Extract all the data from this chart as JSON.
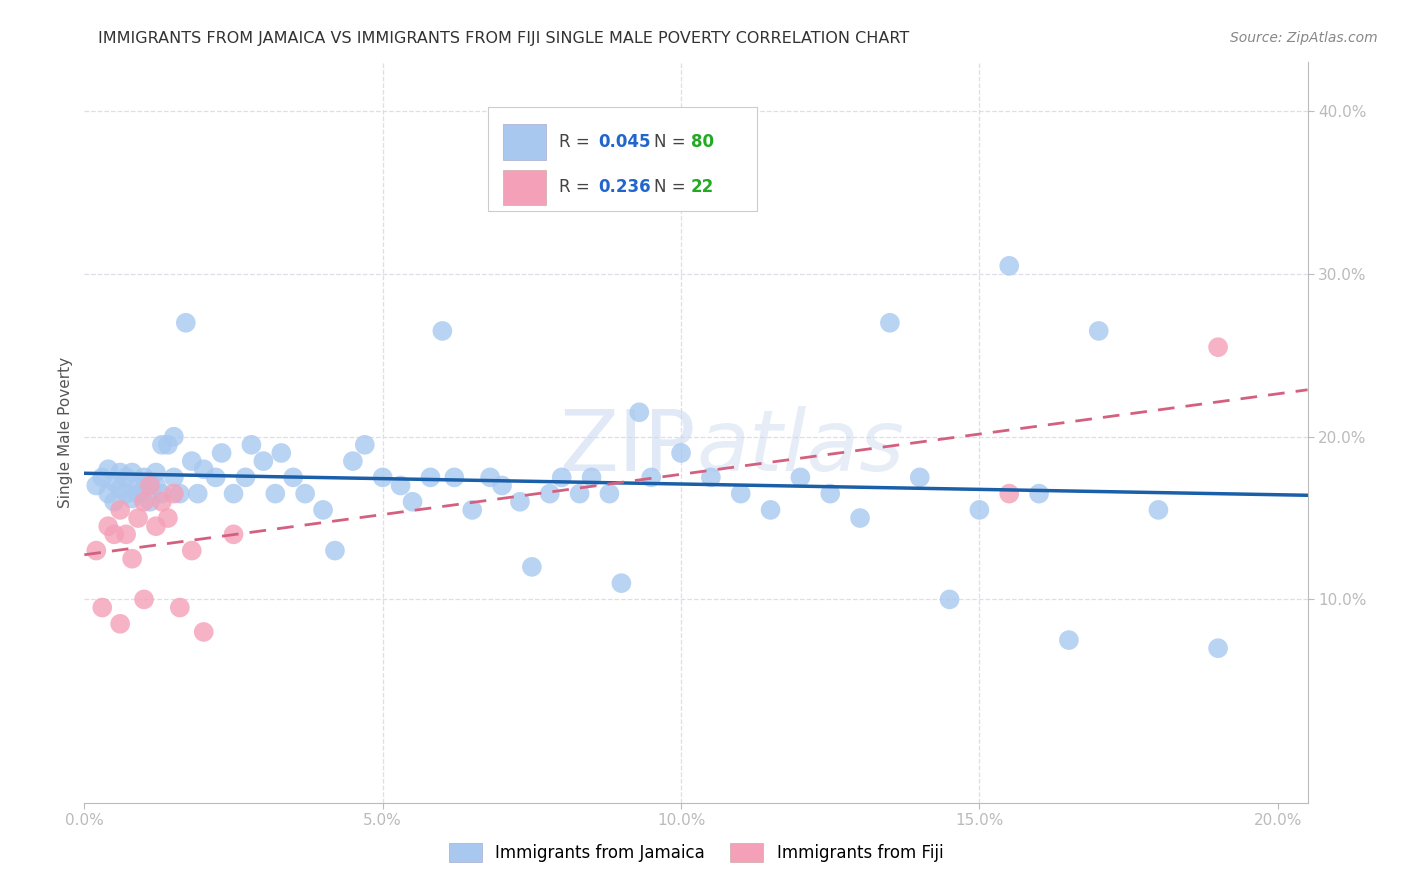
{
  "title": "IMMIGRANTS FROM JAMAICA VS IMMIGRANTS FROM FIJI SINGLE MALE POVERTY CORRELATION CHART",
  "source": "Source: ZipAtlas.com",
  "ylabel": "Single Male Poverty",
  "xlim": [
    0.0,
    0.205
  ],
  "ylim": [
    -0.025,
    0.43
  ],
  "jamaica_color": "#A8C8F0",
  "fiji_color": "#F4A0B8",
  "jamaica_line_color": "#1A5FA8",
  "fiji_line_color": "#D46080",
  "grid_color": "#DDDDEE",
  "axis_color": "#BBBBBB",
  "tick_color": "#4488CC",
  "title_color": "#333333",
  "source_color": "#888888",
  "ylabel_color": "#555555",
  "watermark_color": "#C8D8EE",
  "jamaica_R": 0.045,
  "jamaica_N": 80,
  "fiji_R": 0.236,
  "fiji_N": 22,
  "legend_text_color": "#444444",
  "legend_val_color": "#2266CC",
  "legend_n_color": "#22AA22",
  "jamaica_x": [
    0.002,
    0.003,
    0.004,
    0.004,
    0.005,
    0.005,
    0.006,
    0.006,
    0.007,
    0.007,
    0.008,
    0.008,
    0.009,
    0.009,
    0.01,
    0.01,
    0.011,
    0.011,
    0.012,
    0.012,
    0.013,
    0.013,
    0.014,
    0.015,
    0.015,
    0.016,
    0.017,
    0.018,
    0.019,
    0.02,
    0.022,
    0.023,
    0.025,
    0.027,
    0.028,
    0.03,
    0.032,
    0.033,
    0.035,
    0.037,
    0.04,
    0.042,
    0.045,
    0.047,
    0.05,
    0.053,
    0.055,
    0.058,
    0.06,
    0.062,
    0.065,
    0.068,
    0.07,
    0.073,
    0.075,
    0.078,
    0.08,
    0.083,
    0.085,
    0.088,
    0.09,
    0.093,
    0.095,
    0.1,
    0.105,
    0.11,
    0.115,
    0.12,
    0.125,
    0.13,
    0.135,
    0.14,
    0.145,
    0.15,
    0.155,
    0.16,
    0.165,
    0.17,
    0.18,
    0.19
  ],
  "jamaica_y": [
    0.17,
    0.175,
    0.165,
    0.18,
    0.172,
    0.16,
    0.178,
    0.168,
    0.165,
    0.175,
    0.162,
    0.178,
    0.17,
    0.165,
    0.175,
    0.168,
    0.172,
    0.16,
    0.178,
    0.17,
    0.195,
    0.165,
    0.195,
    0.175,
    0.2,
    0.165,
    0.27,
    0.185,
    0.165,
    0.18,
    0.175,
    0.19,
    0.165,
    0.175,
    0.195,
    0.185,
    0.165,
    0.19,
    0.175,
    0.165,
    0.155,
    0.13,
    0.185,
    0.195,
    0.175,
    0.17,
    0.16,
    0.175,
    0.265,
    0.175,
    0.155,
    0.175,
    0.17,
    0.16,
    0.12,
    0.165,
    0.175,
    0.165,
    0.175,
    0.165,
    0.11,
    0.215,
    0.175,
    0.19,
    0.175,
    0.165,
    0.155,
    0.175,
    0.165,
    0.15,
    0.27,
    0.175,
    0.1,
    0.155,
    0.305,
    0.165,
    0.075,
    0.265,
    0.155,
    0.07
  ],
  "fiji_x": [
    0.002,
    0.003,
    0.004,
    0.005,
    0.006,
    0.006,
    0.007,
    0.008,
    0.009,
    0.01,
    0.01,
    0.011,
    0.012,
    0.013,
    0.014,
    0.015,
    0.016,
    0.018,
    0.02,
    0.025,
    0.155,
    0.19
  ],
  "fiji_y": [
    0.13,
    0.095,
    0.145,
    0.14,
    0.155,
    0.085,
    0.14,
    0.125,
    0.15,
    0.16,
    0.1,
    0.17,
    0.145,
    0.16,
    0.15,
    0.165,
    0.095,
    0.13,
    0.08,
    0.14,
    0.165,
    0.255
  ]
}
